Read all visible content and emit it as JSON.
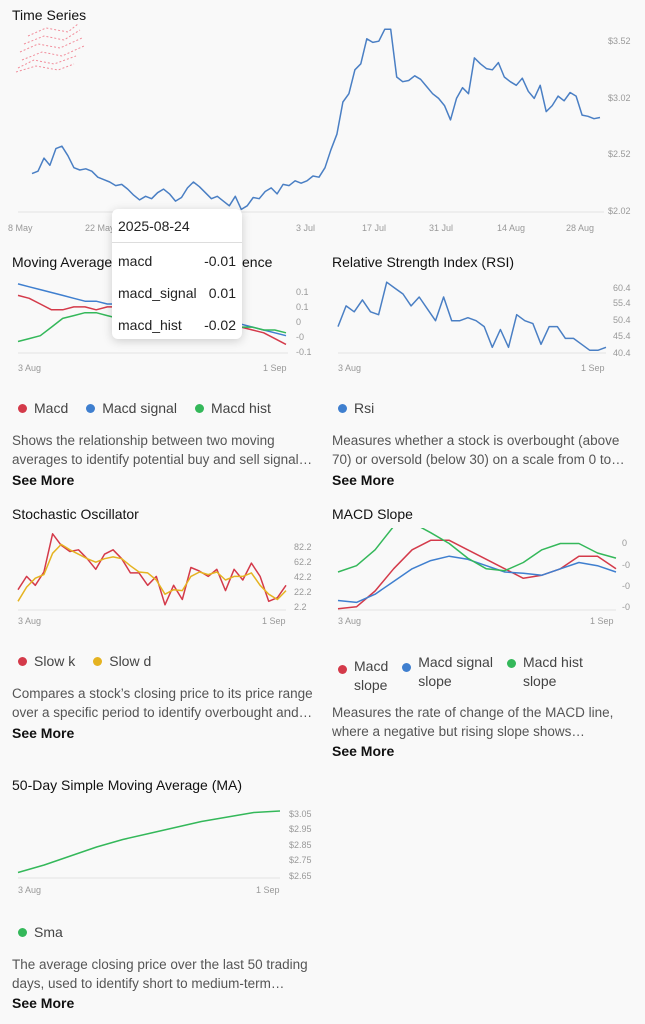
{
  "colors": {
    "red": "#d43a4a",
    "blue": "#3f7fcf",
    "green": "#34b85a",
    "yellow": "#e5b321",
    "line": "#4a7fc4",
    "tick": "#999999"
  },
  "time_series": {
    "title": "Time Series",
    "x_ticks": [
      "8 May",
      "22 May",
      "3 Jul",
      "17 Jul",
      "31 Jul",
      "14 Aug",
      "28 Aug"
    ],
    "y_ticks": [
      "$3.52",
      "$3.02",
      "$2.52",
      "$2.02"
    ]
  },
  "tooltip": {
    "date": "2025-08-24",
    "rows": [
      {
        "label": "macd",
        "value": "-0.01"
      },
      {
        "label": "macd_signal",
        "value": "0.01"
      },
      {
        "label": "macd_hist",
        "value": "-0.02"
      }
    ]
  },
  "macd": {
    "title": "Moving Average",
    "title_tail": "ence",
    "x_ticks": [
      "3 Aug",
      "1 Sep"
    ],
    "y_ticks": [
      "0.1",
      "0.1",
      "0",
      "-0",
      "-0.1"
    ],
    "legend": [
      "Macd",
      "Macd signal",
      "Macd hist"
    ],
    "description_1": "Shows the relationship between two moving",
    "description_2": "averages to identify potential buy and sell signal…",
    "see_more": "See More"
  },
  "rsi": {
    "title": "Relative Strength Index (RSI)",
    "x_ticks": [
      "3 Aug",
      "1 Sep"
    ],
    "y_ticks": [
      "60.4",
      "55.4",
      "50.4",
      "45.4",
      "40.4"
    ],
    "legend": [
      "Rsi"
    ],
    "description_1": "Measures whether a stock is overbought (above",
    "description_2": "70) or oversold (below 30) on a scale from 0 to…",
    "see_more": "See More"
  },
  "stochastic": {
    "title": "Stochastic Oscillator",
    "x_ticks": [
      "3 Aug",
      "1 Sep"
    ],
    "y_ticks": [
      "82.2",
      "62.2",
      "42.2",
      "22.2",
      "2.2"
    ],
    "legend": [
      "Slow k",
      "Slow d"
    ],
    "description_1": "Compares a stock’s closing price to its price range",
    "description_2": "over a specific period to identify overbought and…",
    "see_more": "See More"
  },
  "macd_slope": {
    "title": "MACD Slope",
    "x_ticks": [
      "3 Aug",
      "1 Sep"
    ],
    "y_ticks": [
      "0",
      "-0",
      "-0",
      "-0"
    ],
    "legend": [
      {
        "line1": "Macd",
        "line2": "slope"
      },
      {
        "line1": "Macd signal",
        "line2": "slope"
      },
      {
        "line1": "Macd hist",
        "line2": "slope"
      }
    ],
    "description_1": "Measures the rate of change of the MACD line,",
    "description_2": "where a negative but rising slope shows…",
    "see_more": "See More"
  },
  "sma": {
    "title": "50-Day Simple Moving Average (MA)",
    "x_ticks": [
      "3 Aug",
      "1 Sep"
    ],
    "y_ticks": [
      "$3.05",
      "$2.95",
      "$2.85",
      "$2.75",
      "$2.65"
    ],
    "legend": [
      "Sma"
    ],
    "description_1": "The average closing price over the last 50 trading",
    "description_2": "days, used to identify short to medium-term…",
    "see_more": "See More"
  },
  "chart_data": [
    {
      "type": "line",
      "title": "Time Series",
      "x_range": [
        "2025-05-05",
        "2025-08-31"
      ],
      "ylim": [
        2.02,
        3.52
      ],
      "series": [
        {
          "values": [
            2.35,
            2.37,
            2.48,
            2.42,
            2.56,
            2.58,
            2.5,
            2.4,
            2.38,
            2.39,
            2.37,
            2.32,
            2.3,
            2.28,
            2.25,
            2.26,
            2.22,
            2.17,
            2.13,
            2.16,
            2.14,
            2.19,
            2.22,
            2.18,
            2.12,
            2.15,
            2.23,
            2.28,
            2.24,
            2.19,
            2.14,
            2.16,
            2.12,
            2.08,
            2.16,
            2.05,
            2.08,
            2.15,
            2.14,
            2.2,
            2.23,
            2.18,
            2.26,
            2.25,
            2.29,
            2.27,
            2.29,
            2.33,
            2.32,
            2.4,
            2.55,
            2.68,
            2.95,
            3.02,
            3.22,
            3.27,
            3.48,
            3.45,
            3.46,
            3.56,
            3.56,
            3.16,
            3.12,
            3.13,
            3.17,
            3.14,
            3.08,
            3.02,
            2.98,
            2.92,
            2.8,
            2.98,
            3.07,
            3.02,
            3.32,
            3.27,
            3.23,
            3.22,
            3.28,
            3.16,
            3.12,
            3.09,
            3.15,
            3.04,
            2.98,
            3.09,
            2.87,
            2.92,
            3.0,
            2.96,
            3.03,
            3.0,
            2.84,
            2.83,
            2.81,
            2.82
          ]
        }
      ]
    },
    {
      "type": "line",
      "title": "Moving Average … ence",
      "x_range": [
        "2025-08-01",
        "2025-09-02"
      ],
      "ylim": [
        -0.1,
        0.15
      ],
      "series": [
        {
          "name": "Macd",
          "values": [
            0.1,
            0.09,
            0.07,
            0.05,
            0.05,
            0.06,
            0.06,
            0.05,
            0.06,
            0.06,
            0.07,
            0.07,
            0.06,
            0.07,
            0.06,
            0.05,
            0.03,
            0.02,
            0.0,
            -0.01,
            -0.01,
            -0.02,
            -0.03,
            -0.05,
            -0.07
          ]
        },
        {
          "name": "Macd signal",
          "values": [
            0.14,
            0.13,
            0.12,
            0.11,
            0.1,
            0.09,
            0.08,
            0.08,
            0.07,
            0.07,
            0.07,
            0.06,
            0.06,
            0.05,
            0.04,
            0.03,
            0.03,
            0.02,
            0.01,
            0.01,
            0.0,
            -0.01,
            -0.02,
            -0.03,
            -0.04
          ]
        },
        {
          "name": "Macd hist",
          "values": [
            -0.06,
            -0.05,
            -0.04,
            -0.01,
            0.02,
            0.03,
            0.04,
            0.04,
            0.03,
            0.02,
            0.02,
            0.01,
            0.01,
            0.0,
            0.0,
            0.0,
            -0.01,
            0.0,
            0.01,
            0.0,
            -0.01,
            -0.01,
            -0.02,
            -0.02,
            -0.03
          ]
        }
      ]
    },
    {
      "type": "line",
      "title": "Relative Strength Index (RSI)",
      "x_range": [
        "2025-08-01",
        "2025-09-02"
      ],
      "ylim": [
        38.4,
        63.4
      ],
      "series": [
        {
          "name": "Rsi",
          "values": [
            48,
            55,
            53,
            57,
            53,
            52,
            63,
            61,
            59,
            55,
            58,
            54,
            50,
            58,
            50,
            50,
            51,
            50,
            48,
            41,
            47,
            41,
            52,
            50,
            49,
            42,
            48,
            48,
            44,
            44,
            42,
            40,
            40,
            41
          ]
        }
      ]
    },
    {
      "type": "line",
      "title": "Stochastic Oscillator",
      "x_range": [
        "2025-08-01",
        "2025-09-02"
      ],
      "ylim": [
        2.2,
        90
      ],
      "series": [
        {
          "name": "Slow k",
          "values": [
            25,
            40,
            30,
            45,
            88,
            75,
            68,
            70,
            60,
            48,
            65,
            70,
            60,
            44,
            44,
            30,
            40,
            8,
            30,
            14,
            50,
            46,
            40,
            48,
            24,
            48,
            36,
            55,
            40,
            12,
            16,
            30
          ]
        },
        {
          "name": "Slow d",
          "values": [
            12,
            28,
            38,
            42,
            66,
            76,
            70,
            65,
            60,
            56,
            60,
            62,
            60,
            52,
            45,
            44,
            36,
            20,
            25,
            24,
            40,
            45,
            42,
            45,
            36,
            40,
            40,
            44,
            30,
            20,
            14,
            24
          ]
        }
      ]
    },
    {
      "type": "line",
      "title": "MACD Slope",
      "x_range": [
        "2025-08-01",
        "2025-09-02"
      ],
      "ylim": [
        -1,
        0.2
      ],
      "series": [
        {
          "name": "Macd slope",
          "values": [
            -0.98,
            -0.95,
            -0.7,
            -0.35,
            -0.05,
            0.1,
            0.1,
            -0.05,
            -0.2,
            -0.35,
            -0.5,
            -0.45,
            -0.35,
            -0.15,
            -0.15,
            -0.35
          ]
        },
        {
          "name": "Macd signal slope",
          "values": [
            -0.85,
            -0.88,
            -0.75,
            -0.55,
            -0.35,
            -0.22,
            -0.15,
            -0.2,
            -0.3,
            -0.4,
            -0.42,
            -0.45,
            -0.35,
            -0.25,
            -0.3,
            -0.4
          ]
        },
        {
          "name": "Macd hist slope",
          "values": [
            -0.4,
            -0.3,
            -0.05,
            0.32,
            0.38,
            0.22,
            0.05,
            -0.18,
            -0.35,
            -0.38,
            -0.25,
            -0.05,
            0.05,
            0.05,
            -0.1,
            -0.18
          ]
        }
      ]
    },
    {
      "type": "line",
      "title": "50-Day Simple Moving Average (MA)",
      "x_range": [
        "2025-08-01",
        "2025-09-02"
      ],
      "ylim": [
        2.6,
        3.12
      ],
      "series": [
        {
          "name": "Sma",
          "values": [
            2.65,
            2.7,
            2.76,
            2.82,
            2.87,
            2.91,
            2.95,
            2.99,
            3.02,
            3.05,
            3.06
          ]
        }
      ]
    }
  ]
}
